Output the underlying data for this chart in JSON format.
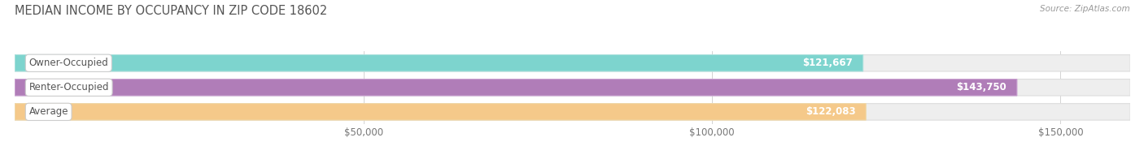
{
  "title": "MEDIAN INCOME BY OCCUPANCY IN ZIP CODE 18602",
  "source": "Source: ZipAtlas.com",
  "categories": [
    "Owner-Occupied",
    "Renter-Occupied",
    "Average"
  ],
  "values": [
    121667,
    143750,
    122083
  ],
  "value_labels": [
    "$121,667",
    "$143,750",
    "$122,083"
  ],
  "bar_colors": [
    "#7dd4ce",
    "#b07db8",
    "#f5c98a"
  ],
  "bar_edge_colors": [
    "#aae0dc",
    "#c9a0d0",
    "#f0d8a8"
  ],
  "track_color": "#eeeeee",
  "track_edge_color": "#dddddd",
  "xmax": 160000,
  "xticks": [
    0,
    50000,
    100000,
    150000
  ],
  "xtick_labels": [
    "",
    "$50,000",
    "$100,000",
    "$150,000"
  ],
  "background_color": "#ffffff",
  "title_fontsize": 10.5,
  "bar_height": 0.68,
  "label_fontsize": 8.5,
  "value_fontsize": 8.5,
  "rounding_size": 0.3
}
